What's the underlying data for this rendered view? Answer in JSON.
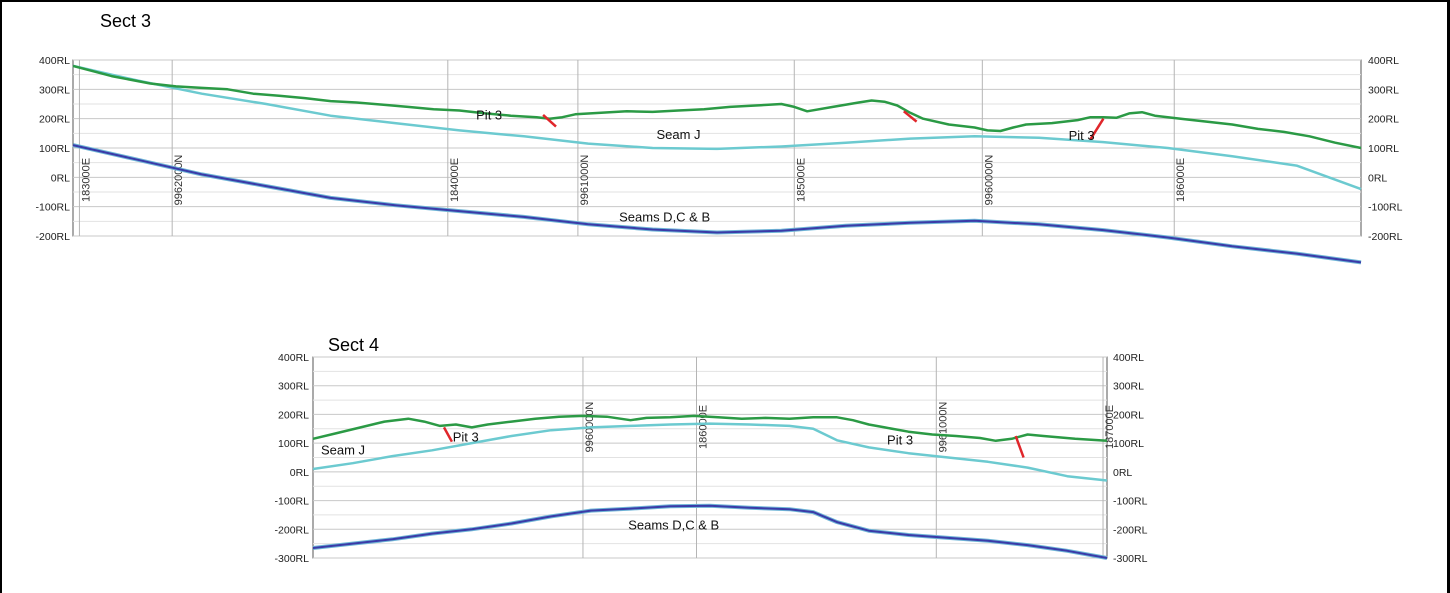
{
  "sections": [
    {
      "title": "Sect 3",
      "ylim": [
        -200,
        400
      ],
      "y_ticks": [
        400,
        300,
        200,
        100,
        0,
        -100,
        -200
      ],
      "y_tick_suffix": "RL",
      "x_range": [
        0,
        100
      ],
      "grid_lines": [
        {
          "x": 0.5,
          "label": "183000E"
        },
        {
          "x": 7.7,
          "label": "9962000N"
        },
        {
          "x": 29.1,
          "label": "184000E"
        },
        {
          "x": 39.2,
          "label": "9961000N"
        },
        {
          "x": 56.0,
          "label": "185000E"
        },
        {
          "x": 70.6,
          "label": "9960000N"
        },
        {
          "x": 85.5,
          "label": "186000E"
        }
      ],
      "annotations": [
        {
          "text": "Pit 3",
          "x": 31.3,
          "y": 198
        },
        {
          "text": "Seam J",
          "x": 45.3,
          "y": 130
        },
        {
          "text": "Pit 3",
          "x": 77.3,
          "y": 128
        },
        {
          "text": "Seams D,C & B",
          "x": 42.4,
          "y": -151
        }
      ]
    },
    {
      "title": "Sect 4",
      "ylim": [
        -300,
        400
      ],
      "y_ticks": [
        400,
        300,
        200,
        100,
        0,
        -100,
        -200,
        -300
      ],
      "y_tick_suffix": "RL",
      "x_range": [
        0,
        100
      ],
      "grid_lines": [
        {
          "x": 34.0,
          "label": "9960000N"
        },
        {
          "x": 48.3,
          "label": "186000E"
        },
        {
          "x": 78.5,
          "label": "9961000N"
        },
        {
          "x": 99.5,
          "label": "187000E"
        }
      ],
      "annotations": [
        {
          "text": "Seam J",
          "x": 1.0,
          "y": 60
        },
        {
          "text": "Pit 3",
          "x": 17.6,
          "y": 105
        },
        {
          "text": "Pit 3",
          "x": 72.3,
          "y": 95
        },
        {
          "text": "Seams D,C & B",
          "x": 39.7,
          "y": -200
        }
      ]
    }
  ]
}
